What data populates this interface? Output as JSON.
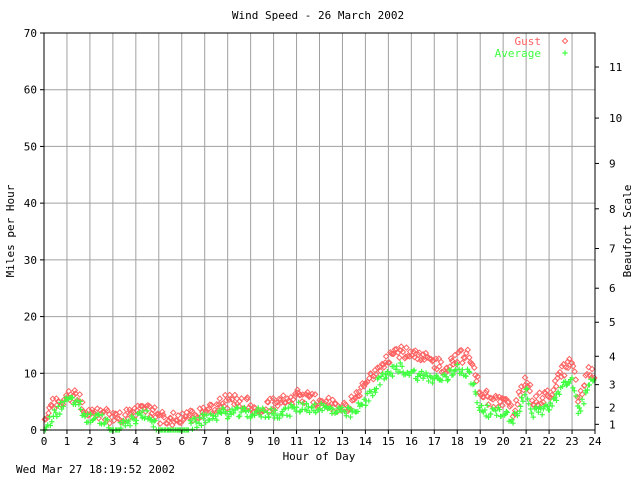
{
  "chart_data": {
    "type": "scatter",
    "title": "Wind Speed - 26 March 2002",
    "xlabel": "Hour of Day",
    "ylabel": "Miles per Hour",
    "y2label": "Beaufort Scale",
    "xlim": [
      0,
      24
    ],
    "ylim": [
      0,
      70
    ],
    "x_ticks": [
      "0",
      "1",
      "2",
      "3",
      "4",
      "5",
      "6",
      "7",
      "8",
      "9",
      "10",
      "11",
      "12",
      "13",
      "14",
      "15",
      "16",
      "17",
      "18",
      "19",
      "20",
      "21",
      "22",
      "23",
      "24"
    ],
    "y_ticks": [
      "0",
      "10",
      "20",
      "30",
      "40",
      "50",
      "60",
      "70"
    ],
    "beaufort_ticks": [
      {
        "label": "1",
        "mph": 1
      },
      {
        "label": "2",
        "mph": 4
      },
      {
        "label": "3",
        "mph": 8
      },
      {
        "label": "4",
        "mph": 13
      },
      {
        "label": "5",
        "mph": 19
      },
      {
        "label": "6",
        "mph": 25
      },
      {
        "label": "7",
        "mph": 32
      },
      {
        "label": "8",
        "mph": 39
      },
      {
        "label": "9",
        "mph": 47
      },
      {
        "label": "10",
        "mph": 55
      },
      {
        "label": "11",
        "mph": 64
      }
    ],
    "grid": true,
    "legend_position": "top-right",
    "series": [
      {
        "name": "Gust",
        "marker": "diamond",
        "color": "#ff6060",
        "profile": [
          [
            0,
            2
          ],
          [
            0.5,
            5
          ],
          [
            1,
            6
          ],
          [
            1.5,
            6
          ],
          [
            1.8,
            3
          ],
          [
            2.5,
            3
          ],
          [
            3,
            2
          ],
          [
            4,
            3
          ],
          [
            4.5,
            4
          ],
          [
            5,
            2
          ],
          [
            6,
            2
          ],
          [
            7,
            3
          ],
          [
            7.8,
            5
          ],
          [
            8.5,
            5
          ],
          [
            9.5,
            4
          ],
          [
            10.5,
            5
          ],
          [
            11,
            6
          ],
          [
            12,
            5
          ],
          [
            13,
            4
          ],
          [
            13.5,
            5
          ],
          [
            14,
            8
          ],
          [
            14.5,
            11
          ],
          [
            15,
            13
          ],
          [
            15.5,
            14
          ],
          [
            16,
            13
          ],
          [
            17,
            12
          ],
          [
            17.5,
            11
          ],
          [
            18,
            13
          ],
          [
            18.5,
            13
          ],
          [
            19,
            7
          ],
          [
            19.5,
            5
          ],
          [
            20,
            5
          ],
          [
            20.5,
            3
          ],
          [
            21,
            10
          ],
          [
            21.3,
            5
          ],
          [
            22,
            6
          ],
          [
            22.5,
            10
          ],
          [
            23,
            12
          ],
          [
            23.3,
            5
          ],
          [
            23.7,
            10
          ],
          [
            24,
            10
          ]
        ]
      },
      {
        "name": "Average",
        "marker": "plus",
        "color": "#40ff40",
        "profile": [
          [
            0,
            0
          ],
          [
            0.5,
            3
          ],
          [
            1,
            5
          ],
          [
            1.5,
            5
          ],
          [
            1.8,
            2
          ],
          [
            2.5,
            2
          ],
          [
            3,
            0
          ],
          [
            4,
            2
          ],
          [
            4.5,
            3
          ],
          [
            5,
            0
          ],
          [
            6,
            0
          ],
          [
            7,
            2
          ],
          [
            7.8,
            3
          ],
          [
            8.5,
            3
          ],
          [
            9.5,
            3
          ],
          [
            10.5,
            3
          ],
          [
            11,
            4
          ],
          [
            12,
            4
          ],
          [
            13,
            3
          ],
          [
            13.5,
            3
          ],
          [
            14,
            5
          ],
          [
            14.5,
            8
          ],
          [
            15,
            10
          ],
          [
            15.5,
            11
          ],
          [
            16,
            10
          ],
          [
            17,
            9
          ],
          [
            17.5,
            9
          ],
          [
            18,
            11
          ],
          [
            18.5,
            10
          ],
          [
            19,
            4
          ],
          [
            19.5,
            3
          ],
          [
            20,
            3
          ],
          [
            20.5,
            2
          ],
          [
            21,
            7
          ],
          [
            21.3,
            3
          ],
          [
            22,
            4
          ],
          [
            22.5,
            7
          ],
          [
            23,
            9
          ],
          [
            23.3,
            3
          ],
          [
            23.7,
            8
          ],
          [
            24,
            8
          ]
        ]
      }
    ]
  },
  "footer": {
    "timestamp": "Wed Mar 27 18:19:52 2002"
  }
}
